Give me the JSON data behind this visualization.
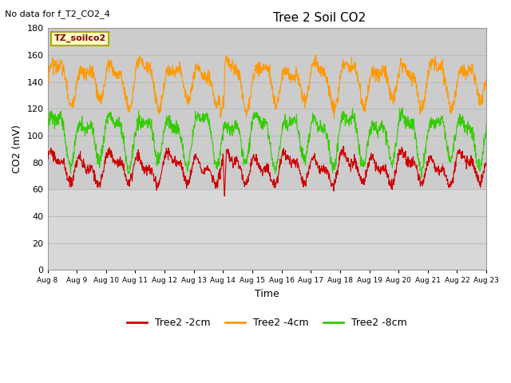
{
  "title": "Tree 2 Soil CO2",
  "subtitle": "No data for f_T2_CO2_4",
  "ylabel": "CO2 (mV)",
  "xlabel": "Time",
  "legend_box_label": "TZ_soilco2",
  "ylim": [
    0,
    180
  ],
  "yticks": [
    0,
    20,
    40,
    60,
    80,
    100,
    120,
    140,
    160,
    180
  ],
  "xtick_labels": [
    "Aug 8",
    "Aug 9",
    "Aug 10",
    "Aug 11",
    "Aug 12",
    "Aug 13",
    "Aug 14",
    "Aug 15",
    "Aug 16",
    "Aug 17",
    "Aug 18",
    "Aug 19",
    "Aug 20",
    "Aug 21",
    "Aug 22",
    "Aug 23"
  ],
  "red_color": "#cc0000",
  "orange_color": "#ff9900",
  "green_color": "#33cc00",
  "red_label": "Tree2 -2cm",
  "orange_label": "Tree2 -4cm",
  "green_label": "Tree2 -8cm",
  "background_color": "#ffffff",
  "plot_bg_upper": "#d4d4d4",
  "plot_bg_lower": "#c8c8c8",
  "grid_color": "#bbbbbb",
  "legend_box_color": "#ffffcc",
  "legend_box_edge": "#aaaa00"
}
